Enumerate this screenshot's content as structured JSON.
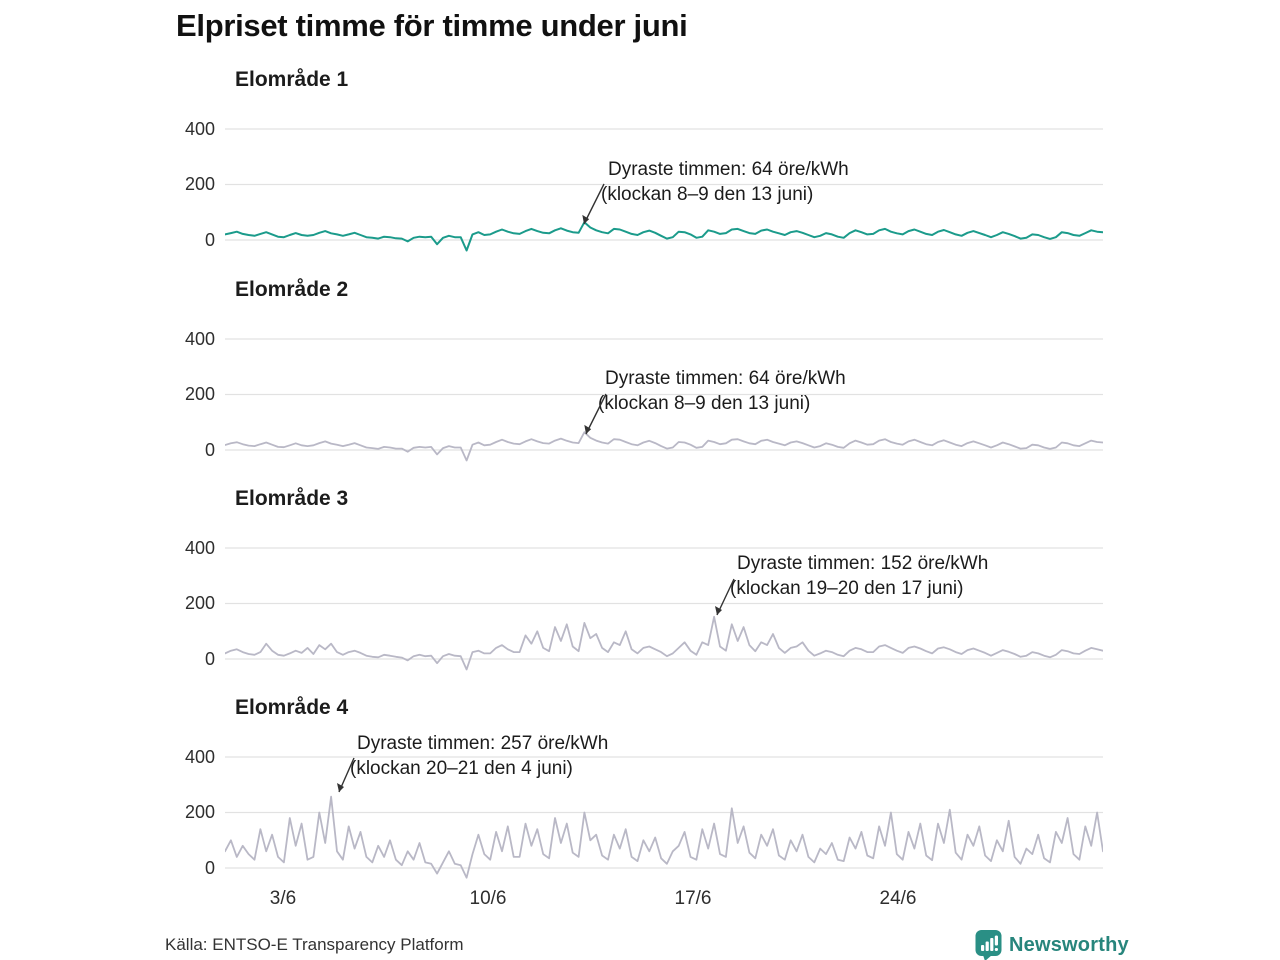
{
  "title": "Elpriset timme för timme under juni",
  "source": "Källa: ENTSO-E Transparency Platform",
  "brand": {
    "name": "Newsworthy",
    "color": "#2a8f85"
  },
  "colors": {
    "area1_line": "#1b9b8b",
    "other_areas_line": "#b9b8c6",
    "gridline": "#e2e2e2",
    "annotation_arrow": "#333333",
    "text": "#1a1a1a"
  },
  "x_axis": {
    "tick_labels": [
      "3/6",
      "10/6",
      "17/6",
      "24/6"
    ]
  },
  "y_axis": {
    "tick_labels": [
      "400",
      "200",
      "0"
    ]
  },
  "chart_data": [
    {
      "type": "line",
      "title": "Elområde 1",
      "unit": "öre/kWh",
      "color": "#1b9b8b",
      "x_range": "June 1–30, hourly (sampled every ~5 h)",
      "y_gridlines": [
        0,
        200,
        400
      ],
      "ylim": [
        -58,
        483
      ],
      "max_point": {
        "value": 64,
        "label_time": "klockan 8–9 den 13 juni"
      },
      "annotation": {
        "line1": "Dyraste timmen: 64 öre/kWh",
        "line2": "(klockan 8–9 den 13 juni)"
      },
      "values": [
        20,
        25,
        30,
        22,
        18,
        15,
        22,
        28,
        20,
        12,
        10,
        18,
        25,
        18,
        15,
        18,
        26,
        32,
        24,
        20,
        15,
        20,
        26,
        18,
        10,
        8,
        5,
        12,
        10,
        6,
        5,
        -5,
        8,
        12,
        10,
        12,
        -15,
        8,
        15,
        10,
        10,
        -38,
        20,
        28,
        18,
        20,
        30,
        38,
        30,
        24,
        22,
        32,
        40,
        32,
        26,
        24,
        35,
        42,
        34,
        28,
        26,
        64,
        45,
        35,
        28,
        24,
        40,
        38,
        30,
        22,
        18,
        28,
        34,
        26,
        15,
        5,
        10,
        30,
        28,
        20,
        8,
        12,
        35,
        30,
        22,
        25,
        38,
        40,
        32,
        25,
        22,
        34,
        38,
        30,
        24,
        18,
        28,
        32,
        26,
        18,
        10,
        15,
        25,
        20,
        12,
        8,
        25,
        35,
        28,
        20,
        22,
        35,
        40,
        30,
        24,
        20,
        32,
        38,
        30,
        22,
        18,
        30,
        36,
        28,
        20,
        15,
        26,
        32,
        25,
        18,
        10,
        18,
        28,
        22,
        14,
        5,
        8,
        20,
        18,
        10,
        4,
        10,
        28,
        25,
        18,
        15,
        25,
        35,
        30,
        28
      ]
    },
    {
      "type": "line",
      "title": "Elområde 2",
      "unit": "öre/kWh",
      "color": "#b9b8c6",
      "x_range": "June 1–30, hourly (sampled every ~5 h)",
      "y_gridlines": [
        0,
        200,
        400
      ],
      "ylim": [
        -58,
        483
      ],
      "max_point": {
        "value": 64,
        "label_time": "klockan 8–9 den 13 juni"
      },
      "annotation": {
        "line1": "Dyraste timmen: 64 öre/kWh",
        "line2": "(klockan 8–9 den 13 juni)"
      },
      "values": [
        18,
        24,
        28,
        21,
        16,
        14,
        21,
        27,
        19,
        11,
        10,
        17,
        24,
        17,
        14,
        17,
        25,
        31,
        23,
        19,
        14,
        19,
        25,
        17,
        9,
        7,
        4,
        11,
        9,
        5,
        5,
        -6,
        8,
        11,
        9,
        11,
        -16,
        7,
        14,
        9,
        9,
        -38,
        19,
        27,
        17,
        19,
        29,
        37,
        29,
        23,
        21,
        31,
        39,
        31,
        25,
        23,
        34,
        41,
        33,
        27,
        25,
        64,
        44,
        34,
        27,
        23,
        39,
        37,
        29,
        21,
        17,
        27,
        33,
        25,
        14,
        5,
        9,
        29,
        27,
        19,
        8,
        11,
        34,
        29,
        21,
        24,
        37,
        39,
        31,
        24,
        21,
        33,
        37,
        29,
        23,
        17,
        27,
        31,
        25,
        17,
        9,
        14,
        24,
        19,
        11,
        8,
        24,
        34,
        27,
        19,
        21,
        34,
        39,
        29,
        23,
        19,
        31,
        37,
        29,
        21,
        17,
        29,
        35,
        27,
        19,
        14,
        25,
        31,
        24,
        17,
        9,
        17,
        27,
        21,
        13,
        5,
        7,
        19,
        17,
        9,
        4,
        9,
        27,
        24,
        17,
        14,
        24,
        34,
        29,
        27
      ]
    },
    {
      "type": "line",
      "title": "Elområde 3",
      "unit": "öre/kWh",
      "color": "#b9b8c6",
      "x_range": "June 1–30, hourly (sampled every ~5 h)",
      "y_gridlines": [
        0,
        200,
        400
      ],
      "ylim": [
        -58,
        483
      ],
      "max_point": {
        "value": 152,
        "label_time": "klockan 19–20 den 17 juni"
      },
      "annotation": {
        "line1": "Dyraste timmen: 152 öre/kWh",
        "line2": "(klockan 19–20 den 17 juni)"
      },
      "values": [
        20,
        30,
        35,
        25,
        18,
        15,
        25,
        55,
        30,
        15,
        12,
        20,
        30,
        22,
        40,
        18,
        50,
        35,
        55,
        25,
        15,
        25,
        30,
        22,
        12,
        8,
        6,
        15,
        12,
        8,
        5,
        -5,
        10,
        15,
        10,
        12,
        -15,
        10,
        18,
        12,
        10,
        -38,
        25,
        30,
        20,
        20,
        40,
        50,
        35,
        25,
        25,
        85,
        55,
        100,
        40,
        28,
        115,
        65,
        125,
        45,
        28,
        130,
        75,
        90,
        40,
        25,
        60,
        50,
        100,
        35,
        20,
        40,
        45,
        35,
        25,
        10,
        20,
        40,
        60,
        30,
        15,
        60,
        50,
        152,
        45,
        30,
        125,
        65,
        115,
        50,
        28,
        60,
        50,
        90,
        40,
        22,
        40,
        45,
        60,
        30,
        12,
        20,
        30,
        25,
        15,
        10,
        30,
        40,
        35,
        25,
        25,
        45,
        50,
        40,
        30,
        22,
        40,
        45,
        38,
        28,
        20,
        38,
        42,
        35,
        25,
        18,
        32,
        38,
        30,
        22,
        12,
        22,
        32,
        26,
        18,
        8,
        12,
        25,
        20,
        12,
        6,
        15,
        32,
        28,
        20,
        18,
        30,
        40,
        35,
        30
      ]
    },
    {
      "type": "line",
      "title": "Elområde 4",
      "unit": "öre/kWh",
      "color": "#b9b8c6",
      "x_range": "June 1–30, hourly (sampled every ~5 h)",
      "y_gridlines": [
        0,
        200,
        400
      ],
      "ylim": [
        -58,
        483
      ],
      "max_point": {
        "value": 257,
        "label_time": "klockan 20–21 den 4 juni"
      },
      "annotation": {
        "line1": "Dyraste timmen: 257 öre/kWh",
        "line2": "(klockan 20–21 den 4 juni)"
      },
      "values": [
        60,
        100,
        40,
        80,
        50,
        30,
        140,
        60,
        120,
        40,
        20,
        180,
        80,
        160,
        30,
        40,
        200,
        90,
        257,
        60,
        30,
        150,
        70,
        130,
        40,
        20,
        80,
        40,
        100,
        30,
        10,
        60,
        30,
        90,
        20,
        15,
        -20,
        20,
        60,
        15,
        10,
        -35,
        50,
        120,
        50,
        30,
        130,
        60,
        150,
        40,
        40,
        160,
        80,
        140,
        50,
        35,
        180,
        90,
        160,
        55,
        40,
        200,
        100,
        120,
        45,
        30,
        120,
        70,
        140,
        40,
        25,
        100,
        60,
        110,
        35,
        15,
        60,
        80,
        130,
        40,
        30,
        140,
        70,
        160,
        50,
        40,
        215,
        90,
        150,
        55,
        35,
        120,
        80,
        140,
        45,
        30,
        100,
        60,
        120,
        40,
        20,
        70,
        50,
        90,
        30,
        25,
        110,
        70,
        130,
        45,
        35,
        150,
        80,
        200,
        50,
        30,
        130,
        70,
        160,
        45,
        28,
        160,
        90,
        210,
        55,
        30,
        120,
        80,
        150,
        45,
        25,
        100,
        60,
        170,
        40,
        15,
        70,
        50,
        120,
        35,
        20,
        130,
        90,
        180,
        50,
        30,
        150,
        80,
        200,
        60
      ]
    }
  ]
}
